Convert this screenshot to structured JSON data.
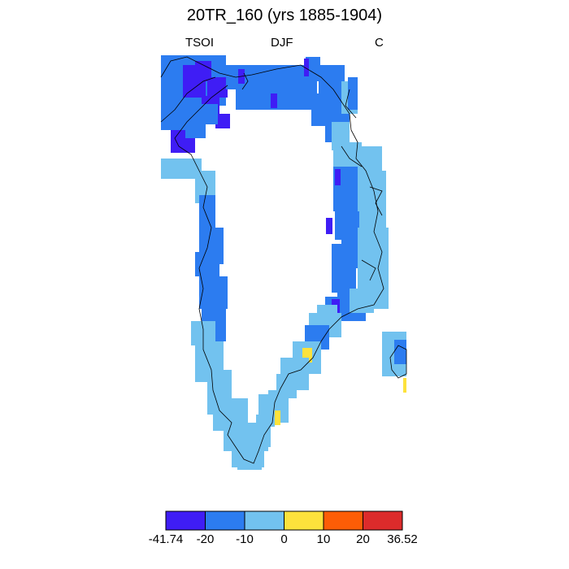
{
  "title": "20TR_160 (yrs 1885-1904)",
  "left_label": "TSOI",
  "center_label": "DJF",
  "right_label": "C",
  "colors": {
    "c1": "#3f1df5",
    "c2": "#2c7cf0",
    "c3": "#72c2ef",
    "c4": "#fde23c",
    "c5": "#fd5d06",
    "c6": "#dc2b2b",
    "coast": "#000000"
  },
  "colorbar": {
    "labels": [
      "-41.74",
      "-20",
      "-10",
      "0",
      "10",
      "20",
      "36.52"
    ]
  }
}
